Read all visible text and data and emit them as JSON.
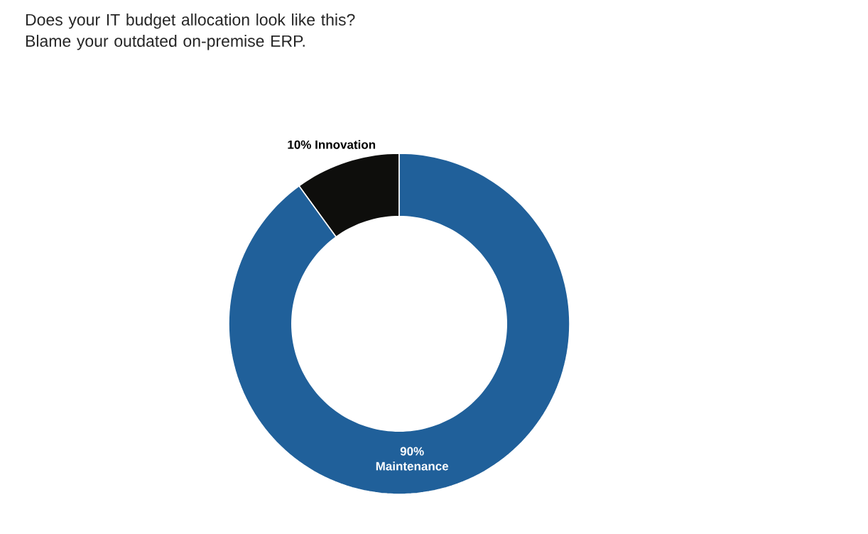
{
  "chart_data": {
    "type": "donut",
    "title": "Does your IT budget allocation look like this?\nBlame your outdated on-premise ERP.",
    "categories": [
      "Innovation",
      "Maintenance"
    ],
    "values": [
      10,
      90
    ],
    "value_labels": [
      "10%",
      "90%"
    ],
    "colors": [
      "#0e0e0c",
      "#20609a"
    ]
  }
}
